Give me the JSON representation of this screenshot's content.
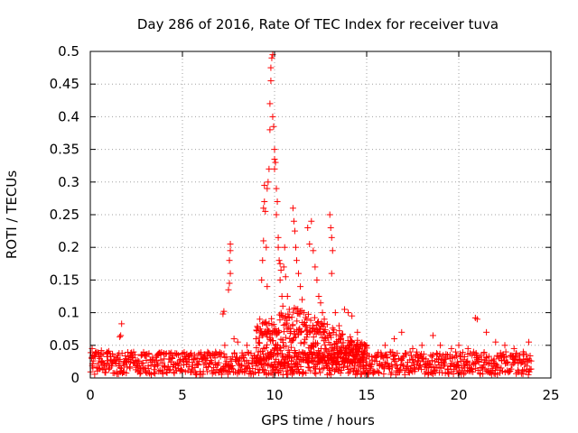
{
  "chart_data": {
    "type": "scatter",
    "title": "Day 286 of 2016, Rate Of TEC Index for receiver tuva",
    "xlabel": "GPS time / hours",
    "ylabel": "ROTI / TECUs",
    "xlim": [
      0,
      25
    ],
    "ylim": [
      0,
      0.5
    ],
    "xticks": [
      0,
      5,
      10,
      15,
      20,
      25
    ],
    "xtick_labels": [
      "0",
      "5",
      "10",
      "15",
      "20",
      "25"
    ],
    "yticks": [
      0,
      0.05,
      0.1,
      0.15,
      0.2,
      0.25,
      0.3,
      0.35,
      0.4,
      0.45,
      0.5
    ],
    "ytick_labels": [
      "0",
      "0.05",
      "0.1",
      "0.15",
      "0.2",
      "0.25",
      "0.3",
      "0.35",
      "0.4",
      "0.45",
      "0.5"
    ],
    "grid": true,
    "marker": "+",
    "marker_color": "#ff0000",
    "series": [
      {
        "name": "ROTI",
        "background_band": {
          "x_range": [
            0,
            23.9
          ],
          "y_typical": [
            0.005,
            0.04
          ]
        },
        "points": [
          [
            0.1,
            0.045
          ],
          [
            0.3,
            0.04
          ],
          [
            0.6,
            0.042
          ],
          [
            1.0,
            0.041
          ],
          [
            1.5,
            0.035
          ],
          [
            1.6,
            0.063
          ],
          [
            1.65,
            0.065
          ],
          [
            1.7,
            0.083
          ],
          [
            2.2,
            0.038
          ],
          [
            3.0,
            0.036
          ],
          [
            4.0,
            0.037
          ],
          [
            5.0,
            0.038
          ],
          [
            6.0,
            0.039
          ],
          [
            6.8,
            0.04
          ],
          [
            7.3,
            0.05
          ],
          [
            7.2,
            0.098
          ],
          [
            7.25,
            0.102
          ],
          [
            7.5,
            0.135
          ],
          [
            7.55,
            0.145
          ],
          [
            7.6,
            0.16
          ],
          [
            7.55,
            0.18
          ],
          [
            7.6,
            0.195
          ],
          [
            7.6,
            0.205
          ],
          [
            7.8,
            0.06
          ],
          [
            8.0,
            0.055
          ],
          [
            8.5,
            0.05
          ],
          [
            9.0,
            0.06
          ],
          [
            9.2,
            0.09
          ],
          [
            9.3,
            0.15
          ],
          [
            9.35,
            0.18
          ],
          [
            9.4,
            0.21
          ],
          [
            9.4,
            0.26
          ],
          [
            9.45,
            0.27
          ],
          [
            9.45,
            0.295
          ],
          [
            9.5,
            0.255
          ],
          [
            9.55,
            0.2
          ],
          [
            9.6,
            0.14
          ],
          [
            9.6,
            0.29
          ],
          [
            9.65,
            0.3
          ],
          [
            9.7,
            0.32
          ],
          [
            9.75,
            0.38
          ],
          [
            9.75,
            0.42
          ],
          [
            9.8,
            0.455
          ],
          [
            9.8,
            0.475
          ],
          [
            9.85,
            0.49
          ],
          [
            9.9,
            0.495
          ],
          [
            9.9,
            0.4
          ],
          [
            9.95,
            0.385
          ],
          [
            10.0,
            0.35
          ],
          [
            10.0,
            0.335
          ],
          [
            10.05,
            0.33
          ],
          [
            10.0,
            0.32
          ],
          [
            10.1,
            0.29
          ],
          [
            10.15,
            0.27
          ],
          [
            10.1,
            0.25
          ],
          [
            10.2,
            0.215
          ],
          [
            10.2,
            0.2
          ],
          [
            10.25,
            0.18
          ],
          [
            10.3,
            0.175
          ],
          [
            10.35,
            0.165
          ],
          [
            10.3,
            0.15
          ],
          [
            10.4,
            0.125
          ],
          [
            10.45,
            0.11
          ],
          [
            10.5,
            0.17
          ],
          [
            10.55,
            0.2
          ],
          [
            10.6,
            0.155
          ],
          [
            10.7,
            0.125
          ],
          [
            10.8,
            0.105
          ],
          [
            11.0,
            0.26
          ],
          [
            11.05,
            0.24
          ],
          [
            11.1,
            0.225
          ],
          [
            11.15,
            0.2
          ],
          [
            11.2,
            0.18
          ],
          [
            11.3,
            0.16
          ],
          [
            11.4,
            0.14
          ],
          [
            11.5,
            0.12
          ],
          [
            11.6,
            0.1
          ],
          [
            11.8,
            0.23
          ],
          [
            11.9,
            0.205
          ],
          [
            12.0,
            0.24
          ],
          [
            12.1,
            0.195
          ],
          [
            12.2,
            0.17
          ],
          [
            12.3,
            0.15
          ],
          [
            12.4,
            0.125
          ],
          [
            12.5,
            0.115
          ],
          [
            12.6,
            0.1
          ],
          [
            12.7,
            0.09
          ],
          [
            13.0,
            0.25
          ],
          [
            13.05,
            0.23
          ],
          [
            13.1,
            0.215
          ],
          [
            13.15,
            0.195
          ],
          [
            13.1,
            0.16
          ],
          [
            13.3,
            0.1
          ],
          [
            13.5,
            0.08
          ],
          [
            13.8,
            0.105
          ],
          [
            14.0,
            0.1
          ],
          [
            14.2,
            0.095
          ],
          [
            14.5,
            0.07
          ],
          [
            15.0,
            0.05
          ],
          [
            16.0,
            0.05
          ],
          [
            16.5,
            0.06
          ],
          [
            16.9,
            0.07
          ],
          [
            17.5,
            0.045
          ],
          [
            18.0,
            0.05
          ],
          [
            18.6,
            0.065
          ],
          [
            19.0,
            0.05
          ],
          [
            19.6,
            0.045
          ],
          [
            20.0,
            0.05
          ],
          [
            20.5,
            0.045
          ],
          [
            20.9,
            0.092
          ],
          [
            21.0,
            0.09
          ],
          [
            21.5,
            0.07
          ],
          [
            22.0,
            0.055
          ],
          [
            22.5,
            0.05
          ],
          [
            23.0,
            0.045
          ],
          [
            23.5,
            0.04
          ],
          [
            23.8,
            0.055
          ]
        ]
      }
    ]
  }
}
